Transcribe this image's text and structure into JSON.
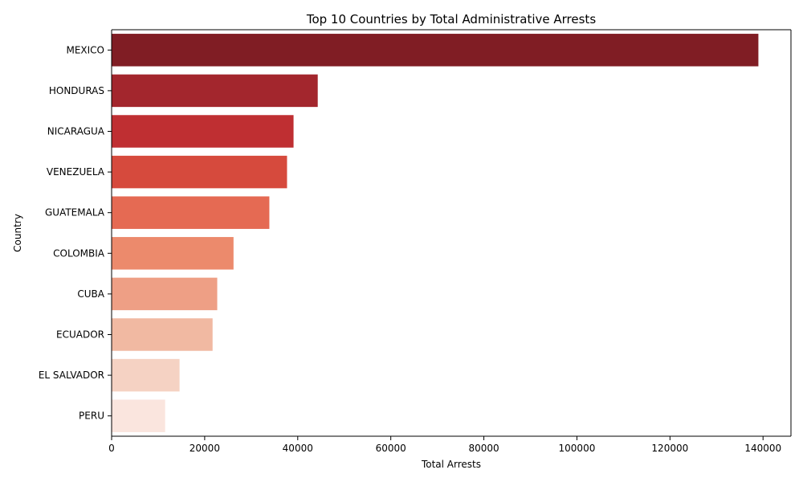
{
  "chart_data": {
    "type": "bar",
    "orientation": "horizontal",
    "title": "Top 10 Countries by Total Administrative Arrests",
    "xlabel": "Total Arrests",
    "ylabel": "Country",
    "xlim": [
      0,
      146000
    ],
    "xticks": [
      0,
      20000,
      40000,
      60000,
      80000,
      100000,
      120000,
      140000
    ],
    "xtick_labels": [
      "0",
      "20000",
      "40000",
      "60000",
      "80000",
      "100000",
      "120000",
      "140000"
    ],
    "grid": false,
    "categories": [
      "MEXICO",
      "HONDURAS",
      "NICARAGUA",
      "VENEZUELA",
      "GUATEMALA",
      "COLOMBIA",
      "CUBA",
      "ECUADOR",
      "EL SALVADOR",
      "PERU"
    ],
    "values": [
      139000,
      44300,
      39100,
      37700,
      33900,
      26200,
      22700,
      21700,
      14600,
      11500
    ],
    "colors": [
      "#801d24",
      "#a3262d",
      "#bf2f32",
      "#d64a3d",
      "#e56a53",
      "#ec8a6c",
      "#ee9f85",
      "#f1b9a2",
      "#f5d2c3",
      "#fae5de"
    ]
  }
}
